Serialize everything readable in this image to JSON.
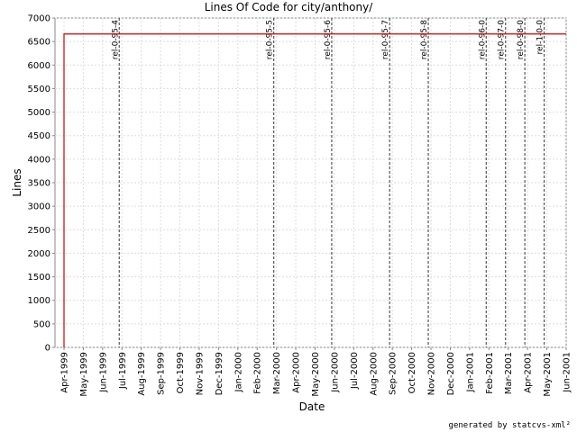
{
  "chart_data": {
    "type": "line",
    "title": "Lines Of Code for city/anthony/",
    "xlabel": "Date",
    "ylabel": "Lines",
    "ylim": [
      0,
      7000
    ],
    "y_ticks": [
      0,
      500,
      1000,
      1500,
      2000,
      2500,
      3000,
      3500,
      4000,
      4500,
      5000,
      5500,
      6000,
      6500,
      7000
    ],
    "x_ticks": [
      "Apr-1999",
      "May-1999",
      "Jun-1999",
      "Jul-1999",
      "Aug-1999",
      "Sep-1999",
      "Oct-1999",
      "Nov-1999",
      "Dec-1999",
      "Jan-2000",
      "Feb-2000",
      "Mar-2000",
      "Apr-2000",
      "May-2000",
      "Jun-2000",
      "Jul-2000",
      "Aug-2000",
      "Sep-2000",
      "Oct-2000",
      "Nov-2000",
      "Dec-2000",
      "Jan-2001",
      "Feb-2001",
      "Mar-2001",
      "Apr-2001",
      "May-2001",
      "Jun-2001"
    ],
    "grid": true,
    "series": [
      {
        "color": "#cc0000",
        "points": [
          {
            "x": "Apr-1999",
            "y": 0
          },
          {
            "x": "Apr-1999",
            "y": 6660
          },
          {
            "x": "Jun-2001",
            "y": 6660
          }
        ]
      }
    ],
    "markers": [
      {
        "label": "rel-0-95-4",
        "x": "Jul-1999"
      },
      {
        "label": "rel-0-95-5",
        "x": "Mar-2000"
      },
      {
        "label": "rel-0-95-6",
        "x": "Jun-2000"
      },
      {
        "label": "rel-0-95-7",
        "x": "Sep-2000"
      },
      {
        "label": "rel-0-95-8",
        "x": "Nov-2000"
      },
      {
        "label": "rel-0-96-0",
        "x": "Feb-2001"
      },
      {
        "label": "rel-0-97-0",
        "x": "Mar-2001"
      },
      {
        "label": "rel-0-98-0",
        "x": "Apr-2001"
      },
      {
        "label": "rel-1-0-0",
        "x": "May-2001"
      }
    ]
  },
  "footer": "generated by statcvs-xml²",
  "colors": {
    "line": "#cc0000",
    "marker": "#555555",
    "grid": "#dddddd",
    "axis": "#888888"
  }
}
